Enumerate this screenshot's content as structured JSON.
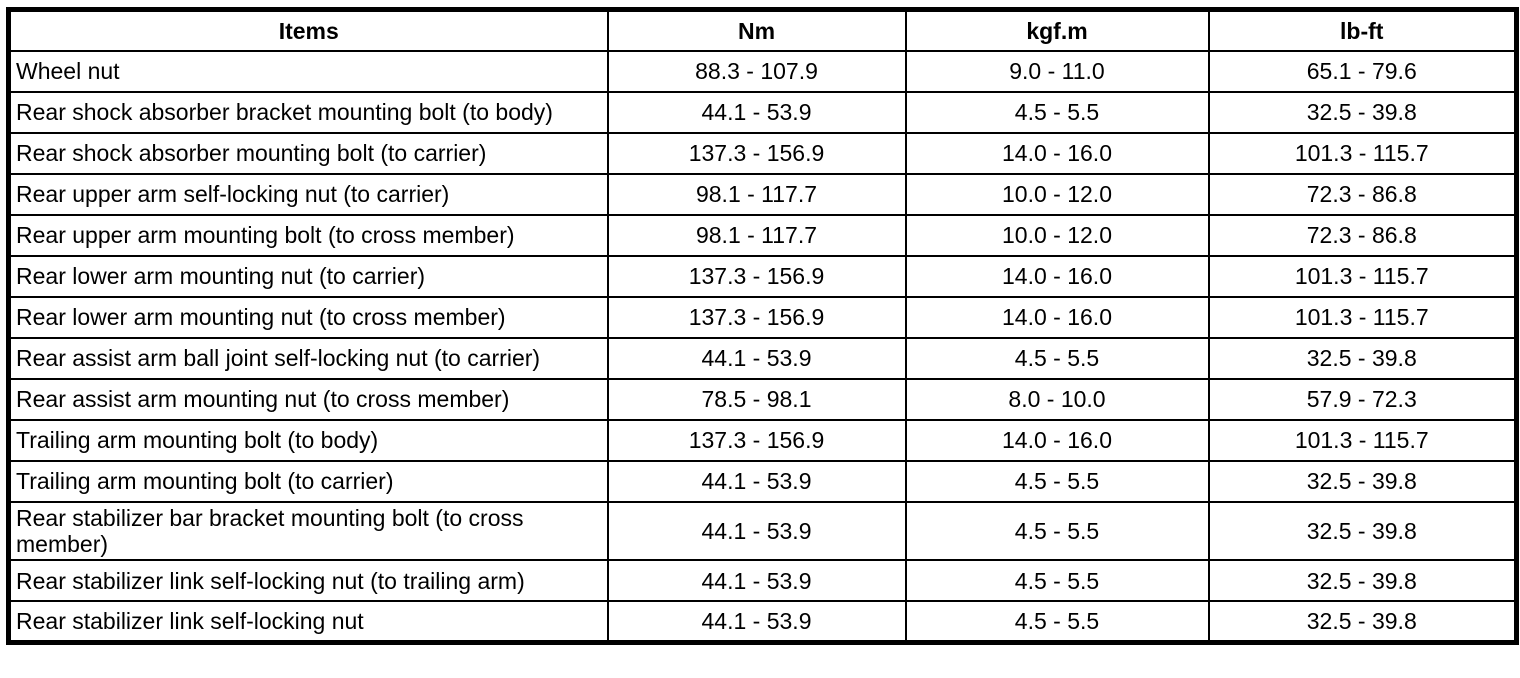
{
  "table": {
    "headers": {
      "items": "Items",
      "nm": "Nm",
      "kgfm": "kgf.m",
      "lbft": "lb-ft"
    },
    "rows": [
      {
        "item": "Wheel nut",
        "nm": "88.3 - 107.9",
        "kgfm": "9.0 - 11.0",
        "lbft": "65.1 - 79.6"
      },
      {
        "item": "Rear shock absorber bracket mounting bolt (to body)",
        "nm": "44.1 - 53.9",
        "kgfm": "4.5 - 5.5",
        "lbft": "32.5 - 39.8"
      },
      {
        "item": "Rear shock absorber mounting bolt (to carrier)",
        "nm": "137.3 - 156.9",
        "kgfm": "14.0 - 16.0",
        "lbft": "101.3 - 115.7"
      },
      {
        "item": "Rear upper arm self-locking nut (to carrier)",
        "nm": "98.1 - 117.7",
        "kgfm": "10.0 - 12.0",
        "lbft": "72.3 - 86.8"
      },
      {
        "item": "Rear upper arm mounting bolt (to cross member)",
        "nm": "98.1 - 117.7",
        "kgfm": "10.0 - 12.0",
        "lbft": "72.3 - 86.8"
      },
      {
        "item": "Rear lower arm mounting nut (to carrier)",
        "nm": "137.3 - 156.9",
        "kgfm": "14.0 - 16.0",
        "lbft": "101.3 - 115.7"
      },
      {
        "item": "Rear lower arm mounting nut (to cross member)",
        "nm": "137.3 - 156.9",
        "kgfm": "14.0 - 16.0",
        "lbft": "101.3 - 115.7"
      },
      {
        "item": "Rear assist arm ball joint self-locking nut (to carrier)",
        "nm": "44.1 - 53.9",
        "kgfm": "4.5 - 5.5",
        "lbft": "32.5 - 39.8"
      },
      {
        "item": "Rear assist arm mounting nut (to cross member)",
        "nm": "78.5 - 98.1",
        "kgfm": "8.0 - 10.0",
        "lbft": "57.9 - 72.3"
      },
      {
        "item": "Trailing arm mounting bolt (to body)",
        "nm": "137.3 - 156.9",
        "kgfm": "14.0 - 16.0",
        "lbft": "101.3 - 115.7"
      },
      {
        "item": "Trailing arm mounting bolt (to carrier)",
        "nm": "44.1 - 53.9",
        "kgfm": "4.5 - 5.5",
        "lbft": "32.5 - 39.8"
      },
      {
        "item": "Rear stabilizer bar bracket mounting bolt (to cross member)",
        "nm": "44.1 - 53.9",
        "kgfm": "4.5 - 5.5",
        "lbft": "32.5 - 39.8"
      },
      {
        "item": "Rear stabilizer link self-locking nut (to trailing arm)",
        "nm": "44.1 - 53.9",
        "kgfm": "4.5 - 5.5",
        "lbft": "32.5 - 39.8"
      },
      {
        "item": "Rear stabilizer link self-locking nut",
        "nm": "44.1 - 53.9",
        "kgfm": "4.5 - 5.5",
        "lbft": "32.5 - 39.8"
      }
    ]
  }
}
